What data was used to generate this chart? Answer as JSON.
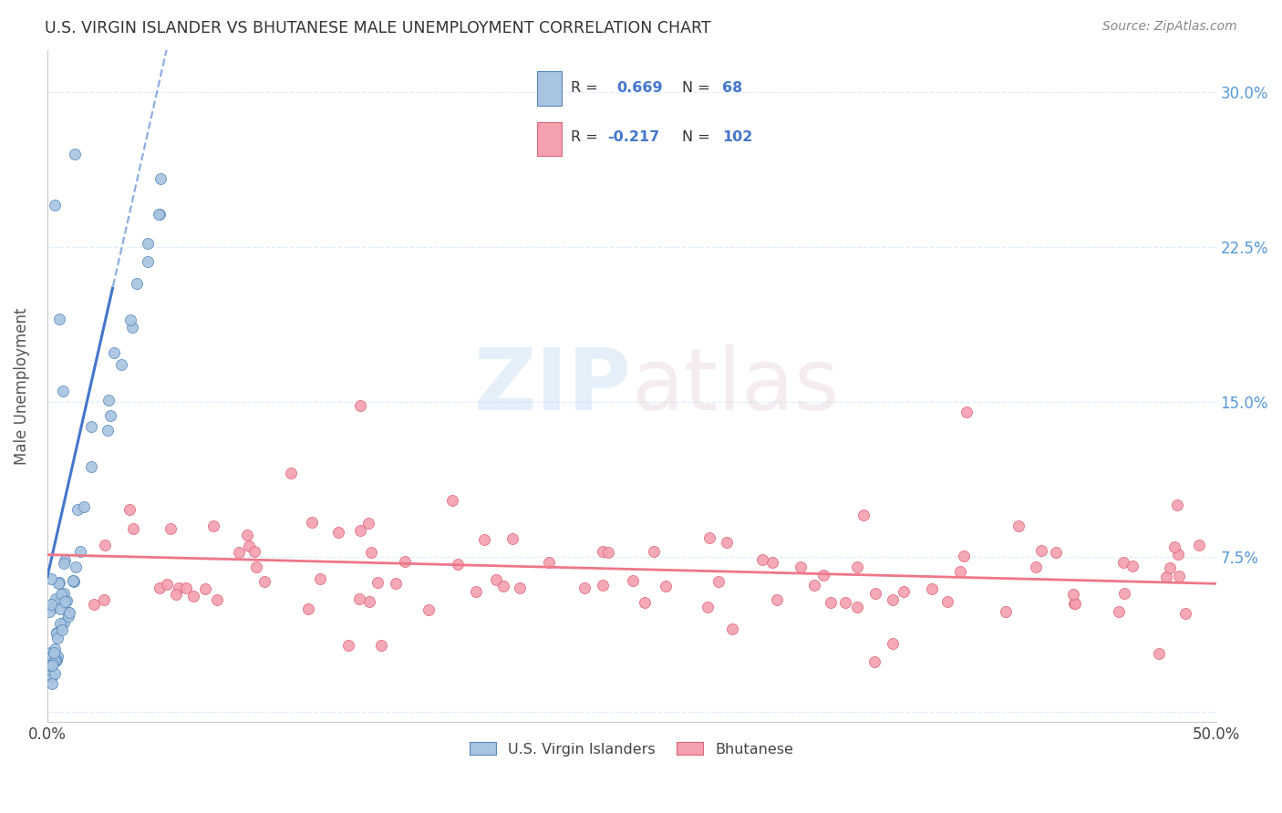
{
  "title": "U.S. VIRGIN ISLANDER VS BHUTANESE MALE UNEMPLOYMENT CORRELATION CHART",
  "source": "Source: ZipAtlas.com",
  "ylabel": "Male Unemployment",
  "yticks": [
    "",
    "7.5%",
    "15.0%",
    "22.5%",
    "30.0%"
  ],
  "ytick_vals": [
    0.0,
    0.075,
    0.15,
    0.225,
    0.3
  ],
  "xlim": [
    0.0,
    0.5
  ],
  "ylim": [
    -0.005,
    0.32
  ],
  "blue_fill": "#A8C4E0",
  "blue_edge": "#5588BB",
  "pink_fill": "#F4A0B0",
  "pink_edge": "#DD6677",
  "blue_line_color": "#4477CC",
  "pink_line_color": "#EE7788",
  "grid_color": "#DDEEFF",
  "title_color": "#333333",
  "source_color": "#888888",
  "right_tick_color": "#5599DD",
  "ylabel_color": "#555555"
}
